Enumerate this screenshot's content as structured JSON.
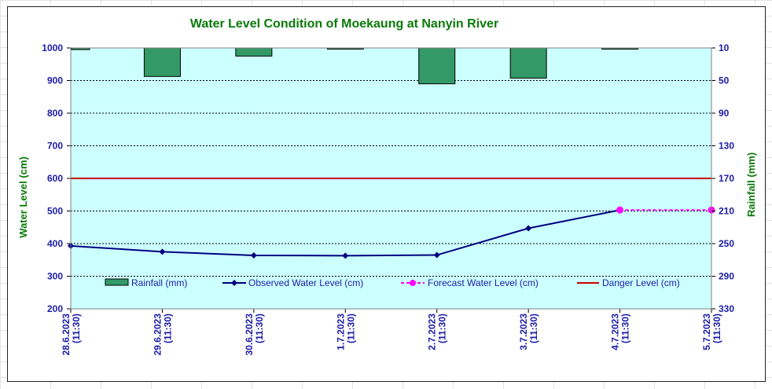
{
  "chart_data": {
    "type": "bar+line",
    "title": "Water Level Condition of Moekaung at Nanyin River",
    "ylabel_left": "Water Level (cm)",
    "ylabel_right": "Rainfall (mm)",
    "ylim_left": [
      200,
      1000
    ],
    "yticks_left": [
      200,
      300,
      400,
      500,
      600,
      700,
      800,
      900,
      1000
    ],
    "ylim_right": [
      10,
      330
    ],
    "yticks_right": [
      10,
      50,
      90,
      130,
      170,
      210,
      250,
      290,
      330
    ],
    "right_axis_inverted": true,
    "x_labels": [
      {
        "date": "28.6.2023",
        "time": "(11:30)"
      },
      {
        "date": "29.6.2023",
        "time": "(11:30)"
      },
      {
        "date": "30.6.2023",
        "time": "(11:30)"
      },
      {
        "date": "1.7.2023",
        "time": "(11:30)"
      },
      {
        "date": "2.7.2023",
        "time": "(11:30)"
      },
      {
        "date": "3.7.2023",
        "time": "(11:30)"
      },
      {
        "date": "4.7.2023",
        "time": "(11:30)"
      },
      {
        "date": "5.7.2023",
        "time": "(11:30)"
      }
    ],
    "rainfall": {
      "name": "Rainfall (mm)",
      "color": "#339966",
      "values": [
        2,
        35,
        10,
        0,
        44,
        37,
        0.5,
        null
      ]
    },
    "observed": {
      "name": "Observed Water Level (cm)",
      "color": "#000080",
      "values": [
        393,
        375,
        364,
        363,
        365,
        447,
        503,
        null
      ]
    },
    "forecast": {
      "name": "Forecast Water Level (cm)",
      "color": "#ff00ff",
      "values": [
        null,
        null,
        null,
        null,
        null,
        null,
        503,
        503
      ]
    },
    "danger": {
      "name": "Danger Level (cm)",
      "color": "#cc0000",
      "value": 600
    },
    "plot_background": "#ccffff",
    "grid": "dotted horizontal",
    "legend_position": "bottom-inside"
  }
}
